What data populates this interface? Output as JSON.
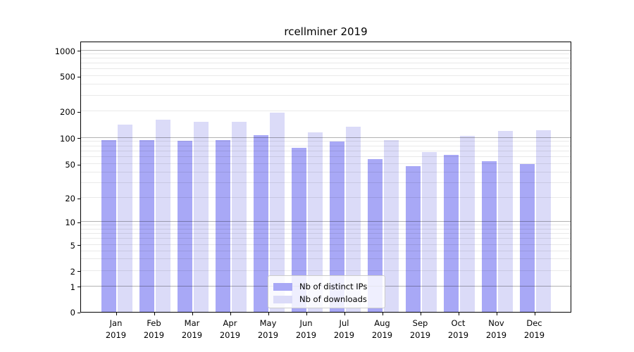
{
  "title": "rcellminer 2019",
  "chart_data": {
    "type": "bar",
    "title": "rcellminer 2019",
    "months": [
      "Jan",
      "Feb",
      "Mar",
      "Apr",
      "May",
      "Jun",
      "Jul",
      "Aug",
      "Sep",
      "Oct",
      "Nov",
      "Dec"
    ],
    "year": "2019",
    "categories": [
      "Jan 2019",
      "Feb 2019",
      "Mar 2019",
      "Apr 2019",
      "May 2019",
      "Jun 2019",
      "Jul 2019",
      "Aug 2019",
      "Sep 2019",
      "Oct 2019",
      "Nov 2019",
      "Dec 2019"
    ],
    "series": [
      {
        "name": "Nb of distinct IPs",
        "color": "#a8a8f6",
        "values": [
          94,
          93,
          92,
          94,
          107,
          77,
          90,
          57,
          47,
          64,
          54,
          50
        ]
      },
      {
        "name": "Nb of downloads",
        "color": "#dbdbf8",
        "values": [
          141,
          159,
          152,
          151,
          193,
          116,
          134,
          93,
          68,
          105,
          119,
          122
        ]
      }
    ],
    "y_axis": {
      "scale": "symlog",
      "ticks": [
        0,
        1,
        2,
        5,
        10,
        20,
        50,
        100,
        200,
        500,
        1000
      ],
      "max": 1300
    },
    "x_axis": {
      "label_line2": "2019"
    },
    "grid": "on",
    "legend": {
      "position": "inside-bottom-center"
    }
  }
}
